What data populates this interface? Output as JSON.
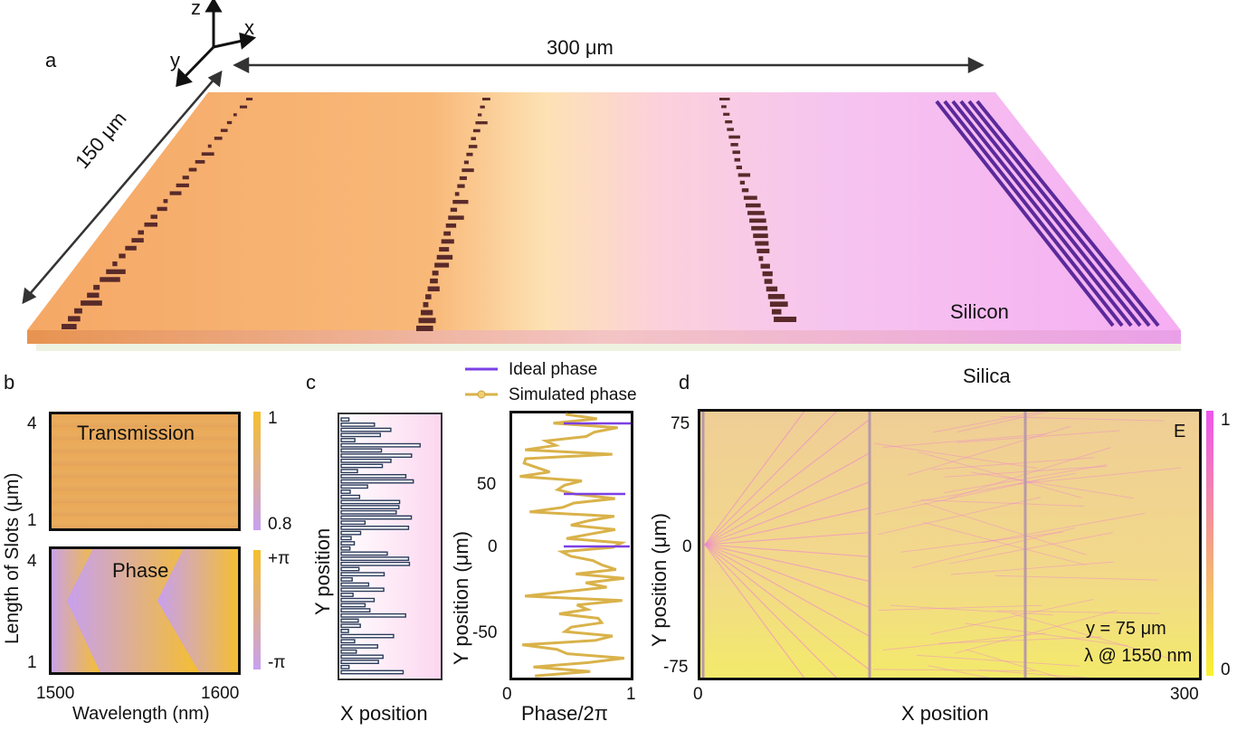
{
  "panel_a": {
    "letter": "a",
    "axes": {
      "z": "z",
      "x": "x",
      "y": "y"
    },
    "width_label": "300 μm",
    "depth_label": "150 μm",
    "top_layer": "Silicon",
    "bottom_layer": "Silica"
  },
  "panel_b": {
    "letter": "b",
    "ylabel": "Length of Slots (μm)",
    "xlabel": "Wavelength  (nm)",
    "x_ticks": [
      "1500",
      "1600"
    ],
    "top_map": {
      "title": "Transmission",
      "y_ticks": [
        "4",
        "1"
      ],
      "colorbar": [
        "1",
        "0.8"
      ]
    },
    "bottom_map": {
      "title": "Phase",
      "y_ticks": [
        "4",
        "1"
      ],
      "colorbar": [
        "+π",
        "-π"
      ]
    },
    "colors": {
      "high": "#f6bf2d",
      "low": "#c7a0f0"
    }
  },
  "panel_c": {
    "letter": "c",
    "left_ylabel": "Y position",
    "left_xlabel": "X position",
    "legend": [
      "Ideal phase",
      "Simulated phase"
    ],
    "ylabel": "Y position (μm)",
    "xlabel": "Phase/2π",
    "y_ticks": [
      "50",
      "0",
      "-50"
    ],
    "x_ticks": [
      "0",
      "1"
    ],
    "colors": {
      "ideal": "#7b3fe4",
      "simulated": "#d9b24a"
    }
  },
  "panel_d": {
    "letter": "d",
    "ylabel": "Y position (μm)",
    "xlabel": "X position",
    "y_ticks": [
      "75",
      "0",
      "-75"
    ],
    "x_ticks": [
      "0",
      "300"
    ],
    "field_label": "E",
    "colorbar": [
      "1",
      "0"
    ],
    "annotations": [
      "y = 75 μm",
      "λ @ 1550 nm"
    ],
    "colors": {
      "high": "#ee55ee",
      "low": "#f8f232"
    }
  }
}
